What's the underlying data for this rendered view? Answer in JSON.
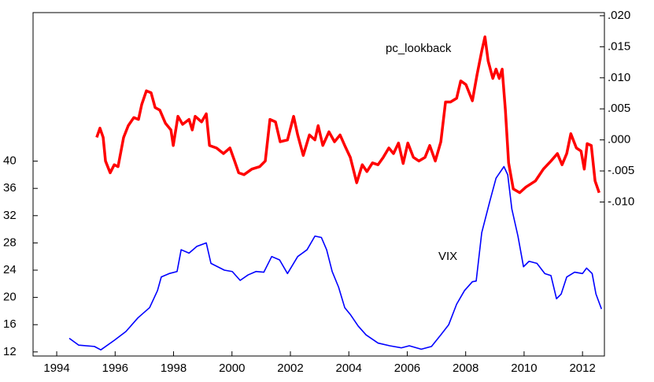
{
  "chart_data": {
    "type": "line",
    "xlim": [
      1993.19,
      2012.75
    ],
    "xticks": [
      1994,
      1996,
      1998,
      2000,
      2002,
      2004,
      2006,
      2008,
      2010,
      2012
    ],
    "ylim": [
      11.4,
      61.8
    ],
    "yticks": [
      12,
      16,
      20,
      24,
      28,
      32,
      36,
      40
    ],
    "y2lim": [
      -0.0348,
      0.0205
    ],
    "y2ticks": [
      {
        "value": -0.01,
        "label": "-.010"
      },
      {
        "value": -0.005,
        "label": "-.005"
      },
      {
        "value": 0,
        "label": ".000"
      },
      {
        "value": 0.005,
        "label": ".005"
      },
      {
        "value": 0.01,
        "label": ".010"
      },
      {
        "value": 0.015,
        "label": ".015"
      },
      {
        "value": 0.02,
        "label": ".020"
      }
    ],
    "series": [
      {
        "name": "pc_lookback",
        "color": "#ff0000",
        "axis": "y2",
        "x": [
          1995.37,
          1995.48,
          1995.59,
          1995.67,
          1995.83,
          1995.97,
          1996.1,
          1996.29,
          1996.45,
          1996.64,
          1996.8,
          1996.91,
          1997.07,
          1997.23,
          1997.37,
          1997.53,
          1997.72,
          1997.91,
          1997.99,
          1998.15,
          1998.31,
          1998.53,
          1998.64,
          1998.74,
          1998.96,
          1999.12,
          1999.23,
          1999.47,
          1999.71,
          1999.93,
          2000.09,
          2000.23,
          2000.41,
          2000.68,
          2000.95,
          2001.14,
          2001.3,
          2001.49,
          2001.65,
          2001.9,
          2002.11,
          2002.25,
          2002.44,
          2002.65,
          2002.84,
          2002.95,
          2003.11,
          2003.32,
          2003.51,
          2003.7,
          2003.86,
          2004.05,
          2004.27,
          2004.46,
          2004.62,
          2004.81,
          2005.0,
          2005.18,
          2005.37,
          2005.53,
          2005.7,
          2005.86,
          2006.02,
          2006.21,
          2006.4,
          2006.61,
          2006.77,
          2006.96,
          2007.15,
          2007.31,
          2007.48,
          2007.69,
          2007.83,
          2008.01,
          2008.23,
          2008.39,
          2008.55,
          2008.66,
          2008.77,
          2008.93,
          2009.04,
          2009.15,
          2009.25,
          2009.36,
          2009.47,
          2009.63,
          2009.85,
          2010.06,
          2010.39,
          2010.66,
          2010.92,
          2011.14,
          2011.3,
          2011.46,
          2011.6,
          2011.79,
          2011.95,
          2012.06,
          2012.16,
          2012.3,
          2012.43,
          2012.57
        ],
        "values": [
          0.0004,
          0.0019,
          0.0004,
          -0.0034,
          -0.0053,
          -0.004,
          -0.0043,
          0.0004,
          0.0023,
          0.0036,
          0.0033,
          0.0057,
          0.0079,
          0.0076,
          0.0052,
          0.0048,
          0.0027,
          0.0016,
          -0.0009,
          0.0038,
          0.0025,
          0.0033,
          0.0016,
          0.0038,
          0.0029,
          0.0042,
          -0.0009,
          -0.0013,
          -0.0022,
          -0.0013,
          -0.0034,
          -0.0053,
          -0.0056,
          -0.0047,
          -0.0043,
          -0.0034,
          0.0033,
          0.0029,
          -0.0003,
          0,
          0.0038,
          0.0008,
          -0.0025,
          0.0008,
          0,
          0.0023,
          -0.0009,
          0.0013,
          -0.0003,
          0.0008,
          -0.0009,
          -0.0028,
          -0.0069,
          -0.004,
          -0.0051,
          -0.0037,
          -0.004,
          -0.0028,
          -0.0013,
          -0.0022,
          -0.0005,
          -0.0038,
          -0.0005,
          -0.0028,
          -0.0034,
          -0.0028,
          -0.0009,
          -0.0034,
          -0.0003,
          0.0061,
          0.0061,
          0.0067,
          0.0095,
          0.0089,
          0.0063,
          0.0105,
          0.0143,
          0.0166,
          0.0127,
          0.0099,
          0.0114,
          0.0099,
          0.0114,
          0.0048,
          -0.0037,
          -0.0079,
          -0.0085,
          -0.0076,
          -0.0066,
          -0.0047,
          -0.0034,
          -0.0022,
          -0.004,
          -0.0022,
          0.001,
          -0.0013,
          -0.0018,
          -0.0047,
          -0.0006,
          -0.0009,
          -0.0066,
          -0.0085
        ]
      },
      {
        "name": "VIX",
        "color": "#0000ff",
        "x": [
          1994.43,
          1994.75,
          1995.29,
          1995.51,
          1995.97,
          1996.37,
          1996.78,
          1997.18,
          1997.45,
          1997.58,
          1997.85,
          1998.12,
          1998.26,
          1998.53,
          1998.8,
          1999.12,
          1999.28,
          1999.74,
          2000.01,
          2000.28,
          2000.55,
          2000.82,
          2001.09,
          2001.36,
          2001.63,
          2001.9,
          2002.25,
          2002.57,
          2002.84,
          2003.06,
          2003.24,
          2003.43,
          2003.65,
          2003.86,
          2004.05,
          2004.32,
          2004.59,
          2005.0,
          2005.4,
          2005.8,
          2006.07,
          2006.48,
          2006.83,
          2007.15,
          2007.42,
          2007.69,
          2007.96,
          2008.23,
          2008.36,
          2008.55,
          2008.82,
          2009.04,
          2009.31,
          2009.44,
          2009.58,
          2009.79,
          2009.98,
          2010.17,
          2010.44,
          2010.71,
          2010.92,
          2011.11,
          2011.27,
          2011.46,
          2011.73,
          2012.0,
          2012.14,
          2012.33,
          2012.46,
          2012.65
        ],
        "values": [
          14,
          13,
          12.8,
          12.3,
          13.7,
          15,
          17,
          18.5,
          21,
          23,
          23.5,
          23.8,
          27,
          26.5,
          27.5,
          28,
          25,
          24,
          23.8,
          22.5,
          23.3,
          23.8,
          23.7,
          26,
          25.5,
          23.5,
          26,
          27,
          29,
          28.8,
          27,
          23.8,
          21.5,
          18.5,
          17.5,
          15.8,
          14.5,
          13.3,
          12.9,
          12.6,
          12.9,
          12.4,
          12.8,
          14.5,
          16,
          19,
          21,
          22.3,
          22.4,
          29.5,
          34,
          37.5,
          39.2,
          38,
          33,
          29,
          24.5,
          25.3,
          25,
          23.5,
          23.2,
          19.8,
          20.5,
          23,
          23.7,
          23.5,
          24.3,
          23.5,
          20.5,
          18.3
        ]
      }
    ]
  }
}
